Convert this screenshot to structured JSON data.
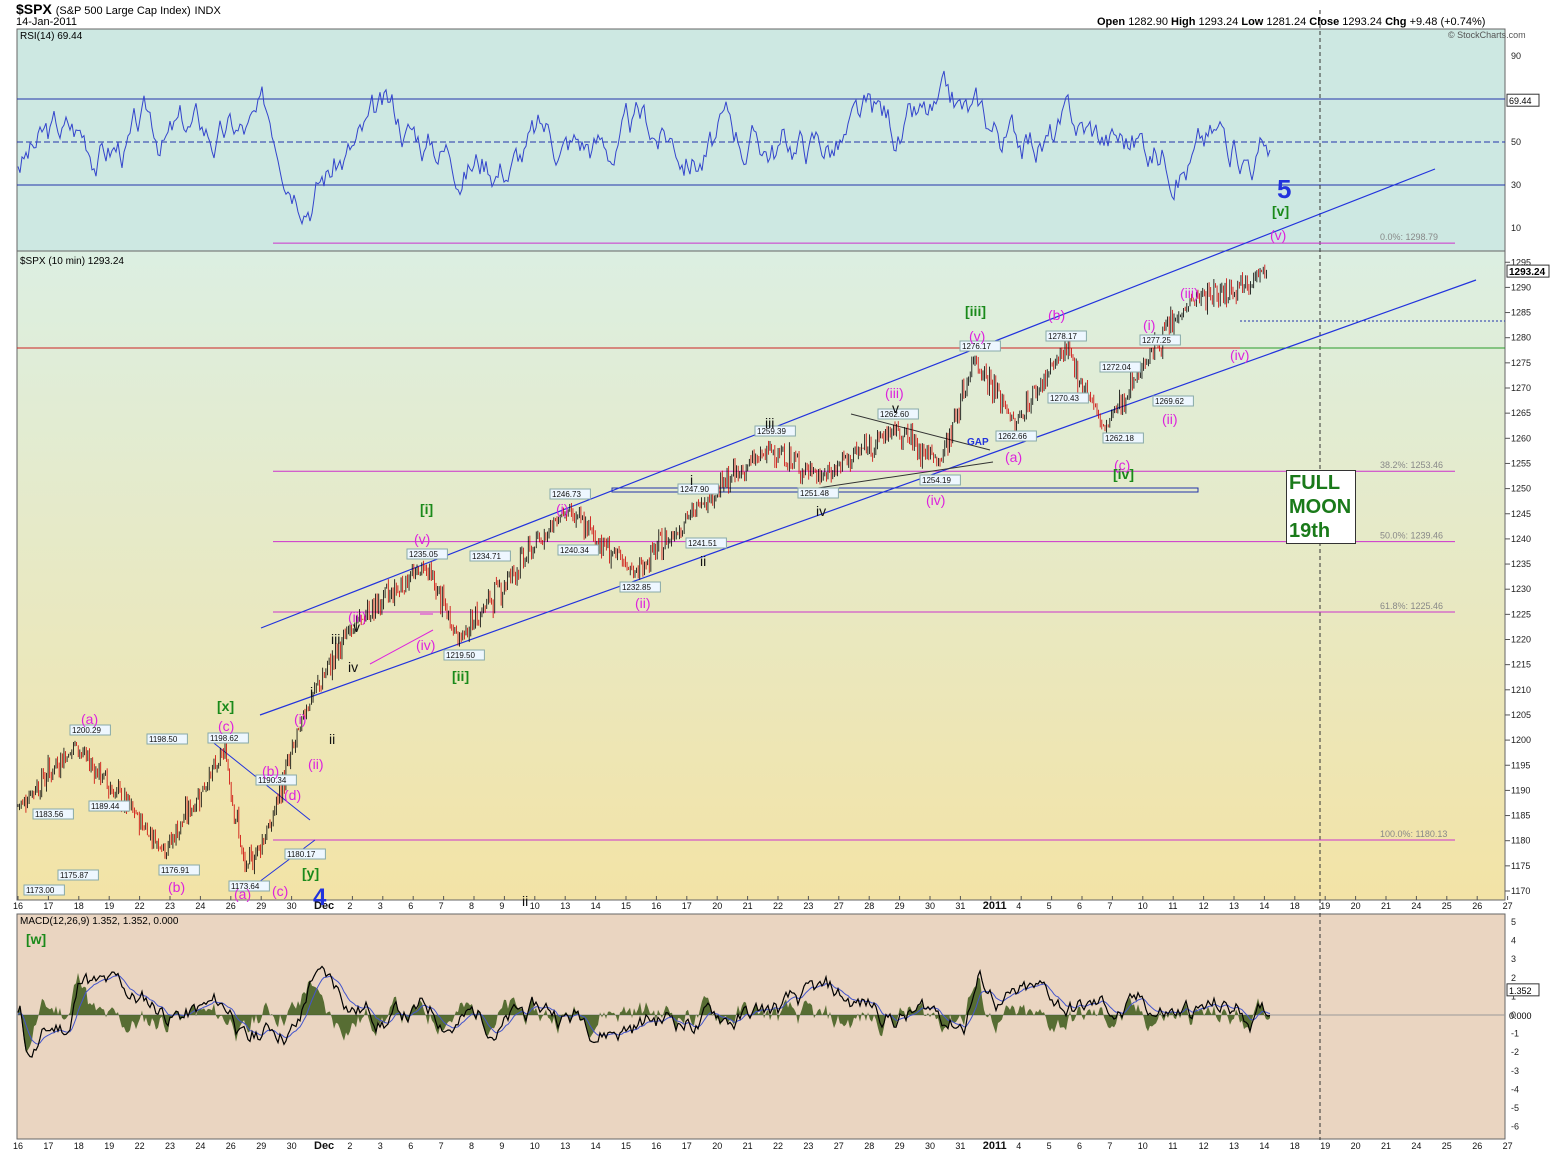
{
  "header": {
    "symbol": "$SPX",
    "name": "(S&P 500 Large Cap Index)",
    "exchange": "INDX",
    "date": "14-Jan-2011",
    "open_label": "Open",
    "open": "1282.90",
    "high_label": "High",
    "high": "1293.24",
    "low_label": "Low",
    "low": "1281.24",
    "close_label": "Close",
    "close": "1293.24",
    "chg_label": "Chg",
    "chg": "+9.48 (+0.74%)",
    "copyright": "© StockCharts.com"
  },
  "colors": {
    "rsi_bg": "#cfe8e3",
    "price_bg_top": "#dff0e0",
    "price_bg_bottom": "#f3e4a8",
    "macd_bg": "#ead5c0",
    "rsi_line": "#3344cc",
    "price_up": "#000000",
    "price_down": "#cc0000",
    "channel": "#2233dd",
    "fib": "#cc33cc",
    "label_magenta": "#dd22dd",
    "label_green": "#1a8a1a",
    "label_blue": "#2233dd",
    "macd_hist": "#3d5a1a"
  },
  "rsi": {
    "title": "RSI(14) 69.44",
    "ticks": [
      "90",
      "70",
      "50",
      "30",
      "10"
    ],
    "last_value": "69.44"
  },
  "price_panel": {
    "title": "$SPX (10 min) 1293.24",
    "last_price": "1293.24",
    "y_ticks": [
      "1295",
      "1290",
      "1285",
      "1280",
      "1275",
      "1270",
      "1265",
      "1260",
      "1255",
      "1250",
      "1245",
      "1240",
      "1235",
      "1230",
      "1225",
      "1220",
      "1215",
      "1210",
      "1205",
      "1200",
      "1195",
      "1190",
      "1185",
      "1180",
      "1175",
      "1170"
    ]
  },
  "macd": {
    "title": "MACD(12,26,9) 1.352, 1.352, 0.000",
    "ticks": [
      "5",
      "4",
      "3",
      "2",
      "1",
      "0",
      "-1",
      "-2",
      "-3",
      "-4",
      "-5",
      "-6"
    ],
    "last_value": "1.352",
    "zero_value": "0.000"
  },
  "x_axis": {
    "labels": [
      "16",
      "17",
      "18",
      "19",
      "22",
      "23",
      "24",
      "26",
      "29",
      "30",
      "Dec",
      "2",
      "3",
      "6",
      "7",
      "8",
      "9",
      "10",
      "13",
      "14",
      "15",
      "16",
      "17",
      "20",
      "21",
      "22",
      "23",
      "27",
      "28",
      "29",
      "30",
      "31",
      "2011",
      "4",
      "5",
      "6",
      "7",
      "10",
      "11",
      "12",
      "13",
      "14",
      "18",
      "19",
      "20",
      "21",
      "24",
      "25",
      "26",
      "27"
    ]
  },
  "fib_levels": [
    {
      "label": "0.0%: 1298.79",
      "value": 1298.79
    },
    {
      "label": "38.2%: 1253.46",
      "value": 1253.46
    },
    {
      "label": "50.0%: 1239.46",
      "value": 1239.46
    },
    {
      "label": "61.8%: 1225.46",
      "value": 1225.46
    },
    {
      "label": "100.0%: 1180.13",
      "value": 1180.13
    }
  ],
  "price_annotations": [
    "1200.29",
    "1198.50",
    "1198.62",
    "1183.56",
    "1189.44",
    "1175.87",
    "1173.00",
    "1176.91",
    "1173.64",
    "1190.34",
    "1180.17",
    "1235.05",
    "1234.71",
    "1219.50",
    "1246.73",
    "1240.34",
    "1232.85",
    "1247.90",
    "1241.51",
    "1259.39",
    "1251.48",
    "1262.60",
    "1254.19",
    "1276.17",
    "1262.66",
    "1278.17",
    "1270.43",
    "1272.04",
    "1262.18",
    "1277.25",
    "1269.62"
  ],
  "wave_labels": [
    "(a)",
    "(c)",
    "(b)",
    "[x]",
    "(b)",
    "(d)",
    "(a)",
    "(c)",
    "[y]",
    "4",
    "(i)",
    "(ii)",
    "i",
    "ii",
    "iii",
    "iv",
    "v",
    "(iii)",
    "(iv)",
    "(v)",
    "[i]",
    "[ii]",
    "(i)",
    "(ii)",
    "i",
    "ii",
    "iii",
    "iv",
    "v",
    "(iii)",
    "(iv)",
    "GAP",
    "(v)",
    "[iii]",
    "(a)",
    "(b)",
    "(c)",
    "[iv]",
    "(i)",
    "(ii)",
    "(iii)",
    "(iv)",
    "(v)",
    "[v]",
    "5",
    "[w]",
    "ii"
  ],
  "moon_box": {
    "line1": "FULL",
    "line2": "MOON",
    "line3": "19th"
  },
  "chart_data": {
    "type": "line",
    "title": "$SPX (S&P 500 Large Cap Index) INDX",
    "xlabel": "",
    "ylabel": "",
    "ylim": [
      1170,
      1297
    ],
    "x": [
      "Nov 16",
      "Nov 18",
      "Nov 22",
      "Nov 24",
      "Nov 29",
      "Nov 30",
      "Dec 1",
      "Dec 3",
      "Dec 7",
      "Dec 8",
      "Dec 13",
      "Dec 16",
      "Dec 20",
      "Dec 22",
      "Dec 27",
      "Dec 29",
      "Dec 31",
      "Jan 3",
      "Jan 4",
      "Jan 6",
      "Jan 10",
      "Jan 11",
      "Jan 12",
      "Jan 14"
    ],
    "series": [
      {
        "name": "$SPX (10 min)",
        "values": [
          1187,
          1199,
          1178,
          1198,
          1174,
          1183,
          1206,
          1222,
          1235,
          1220,
          1246,
          1233,
          1247,
          1258,
          1252,
          1262,
          1255,
          1276,
          1263,
          1278,
          1262,
          1277,
          1287,
          1293
        ]
      }
    ],
    "reference_lines": [
      1298.79,
      1253.46,
      1239.46,
      1225.46,
      1180.13
    ]
  }
}
